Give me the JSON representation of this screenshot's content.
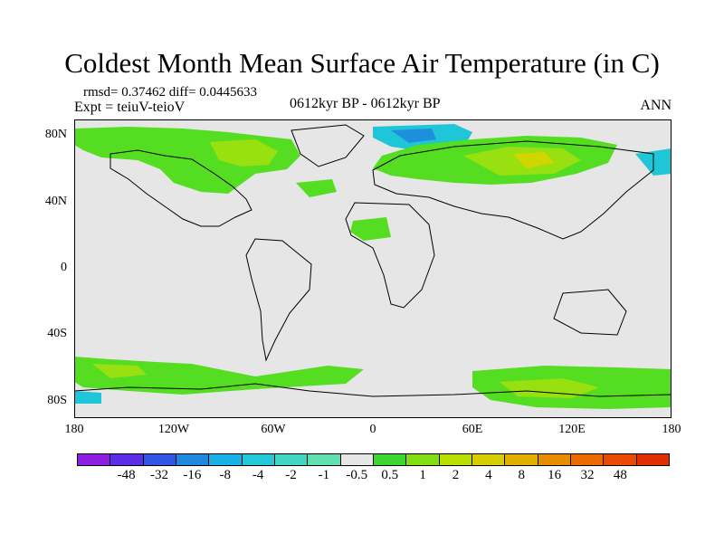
{
  "title": "Coldest Month Mean Surface Air Temperature (in C)",
  "stats": "rmsd= 0.37462 diff= 0.0445633",
  "expt": "Expt = teiuV-teioV",
  "period": "0612kyr BP - 0612kyr BP",
  "season": "ANN",
  "axes": {
    "y_ticks": [
      "80N",
      "40N",
      "0",
      "40S",
      "80S"
    ],
    "x_ticks": [
      "180",
      "120W",
      "60W",
      "0",
      "60E",
      "120E",
      "180"
    ]
  },
  "colorbar": {
    "colors": [
      "#8f1fe0",
      "#5a2ee6",
      "#2e58e3",
      "#1e88df",
      "#19b0e6",
      "#23c9d8",
      "#3fd6c4",
      "#5fe0b0",
      "#e6e6e6",
      "#3bd62e",
      "#80df12",
      "#b9e000",
      "#d6ce00",
      "#e0b000",
      "#e68e00",
      "#ea6a00",
      "#e84a00",
      "#e02e00"
    ],
    "labels": [
      "-48",
      "-32",
      "-16",
      "-8",
      "-4",
      "-2",
      "-1",
      "-0.5",
      "0.5",
      "1",
      "2",
      "4",
      "8",
      "16",
      "32",
      "48"
    ]
  },
  "colors": {
    "ocean_land_neutral": "#e6e6e6",
    "anomaly_green": "#55dd22",
    "anomaly_lime": "#99e010",
    "anomaly_yellow": "#cfd600",
    "anomaly_cyan": "#1fc6d8",
    "anomaly_blue": "#1e8fdc"
  }
}
